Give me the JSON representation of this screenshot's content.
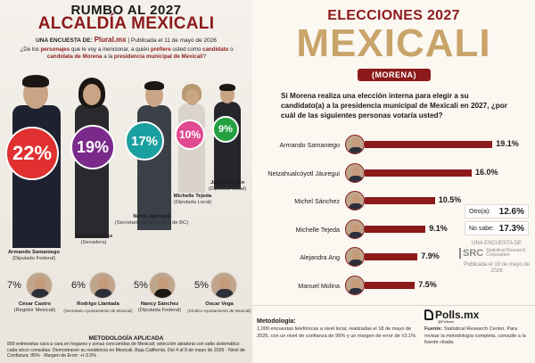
{
  "left": {
    "kicker": "RUMBO AL 2027",
    "title": "ALCALDÍA MEXICALI",
    "survey_prefix": "UNA ENCUESTA DE:",
    "survey_brand": "Plural.mx",
    "survey_date": "| Publicada el 11 de mayo de 2026",
    "question_1": "¿De los ",
    "question_hl1": "personajes",
    "question_2": " que le voy a mencionar, a quién ",
    "question_hl2": "prefiere",
    "question_3": " usted como ",
    "question_hl3": "candidato",
    "question_4": " o ",
    "question_hl4": "candidata de Morena",
    "question_5": " a la ",
    "question_hl5": "presidencia municipal de Mexicali",
    "question_6": "?",
    "main_candidates": [
      {
        "name": "Armando Samaniego",
        "role": "(Diputado Federal)",
        "pct": "22%"
      },
      {
        "name": "Julieta Ramírez",
        "role": "(Senadora)",
        "pct": "19%"
      },
      {
        "name": "Netza Jáuregui",
        "role": "(Secretario de Bienestar de BC)",
        "pct": "17%"
      },
      {
        "name": "Michelle Tejeda",
        "role": "(Diputada Local)",
        "pct": "10%"
      },
      {
        "name": "Jaime Cantón",
        "role": "(Diputado Local)",
        "pct": "9%"
      }
    ],
    "minor_candidates": [
      {
        "name": "César Castro",
        "role": "(Regidor Mexicali)",
        "pct": "7%"
      },
      {
        "name": "Rodrigo Llantada",
        "role": "(Secretario Ayuntamiento de Mexicali)",
        "pct": "6%"
      },
      {
        "name": "Nancy Sánchez",
        "role": "(Diputada Federal)",
        "pct": "5%"
      },
      {
        "name": "Oscar Vega",
        "role": "(Síndico Ayuntamiento de Mexicali)",
        "pct": "5%"
      }
    ],
    "methodology_title": "METODOLOGÍA APLICADA",
    "methodology_text": "800 entrevistas cara a cara en hogares y zonas concurridas de Mexicali; selección aleatoria con salto sistemático cada cinco consultas. Demostraron su residencia en Mexicali, Baja California. Del 4 al 8 de mayo de 2026 · Nivel de Confianza: 95% · Margen de Error: +/-3.5%",
    "colors": {
      "accent": "#8c1a1a",
      "bubble_red": "#e03030",
      "bubble_purple": "#7a2a8a",
      "bubble_teal": "#1aa0a0",
      "bubble_pink": "#e04a90",
      "bubble_green": "#25a040"
    }
  },
  "right": {
    "kicker": "ELECCIONES 2027",
    "title": "MEXICALI",
    "pill": "(MORENA)",
    "question": "Si Morena realiza una elección interna para elegir a su candidato(a) a la presidencia municipal de Mexicali en 2027, ¿por cuál de las siguientes personas votaría usted?",
    "extra": [
      {
        "label": "Otro(a):",
        "value": "12.6%"
      },
      {
        "label": "No sabe:",
        "value": "17.3%"
      }
    ],
    "source_kicker": "UNA ENCUESTA DE",
    "source_mark": "SRC",
    "source_name": "Statistical Research Corporation",
    "source_date": "Publicada el 19 de mayo de 2026",
    "brand": "Polls.mx",
    "brand_sub": "@Pollsmx",
    "methodology_title": "Metodología:",
    "methodology_text": "1,000 encuestas telefónicas a nivel local, realizadas el 18 de mayo de 2026, con un nivel de confianza de 95% y un margen de error de ±3.1%.",
    "source_label": "Fuente:",
    "source_text": " Statistical Research Center. Para revisar la metodología completa, consulte a la fuente citada."
  },
  "chart_data": [
    {
      "type": "bar",
      "title": "ALCALDÍA MEXICALI",
      "categories": [
        "Armando Samaniego",
        "Julieta Ramírez",
        "Netza Jáuregui",
        "Michelle Tejeda",
        "Jaime Cantón",
        "César Castro",
        "Rodrigo Llantada",
        "Nancy Sánchez",
        "Oscar Vega"
      ],
      "values": [
        22,
        19,
        17,
        10,
        9,
        7,
        6,
        5,
        5
      ],
      "unit": "%"
    },
    {
      "type": "bar",
      "title": "MEXICALI",
      "categories": [
        "Armando Samaniego",
        "Netzahualcóyotl Jáuregui",
        "Michel Sánchez",
        "Michelle Tejeda",
        "Alejandra Ang",
        "Manuel Molina"
      ],
      "values": [
        19.1,
        16.0,
        10.5,
        9.1,
        7.9,
        7.5
      ],
      "labels": [
        "19.1%",
        "16.0%",
        "10.5%",
        "9.1%",
        "7.9%",
        "7.5%"
      ],
      "xlim": [
        0,
        20
      ],
      "bar_color": "#8c1a1a"
    }
  ]
}
